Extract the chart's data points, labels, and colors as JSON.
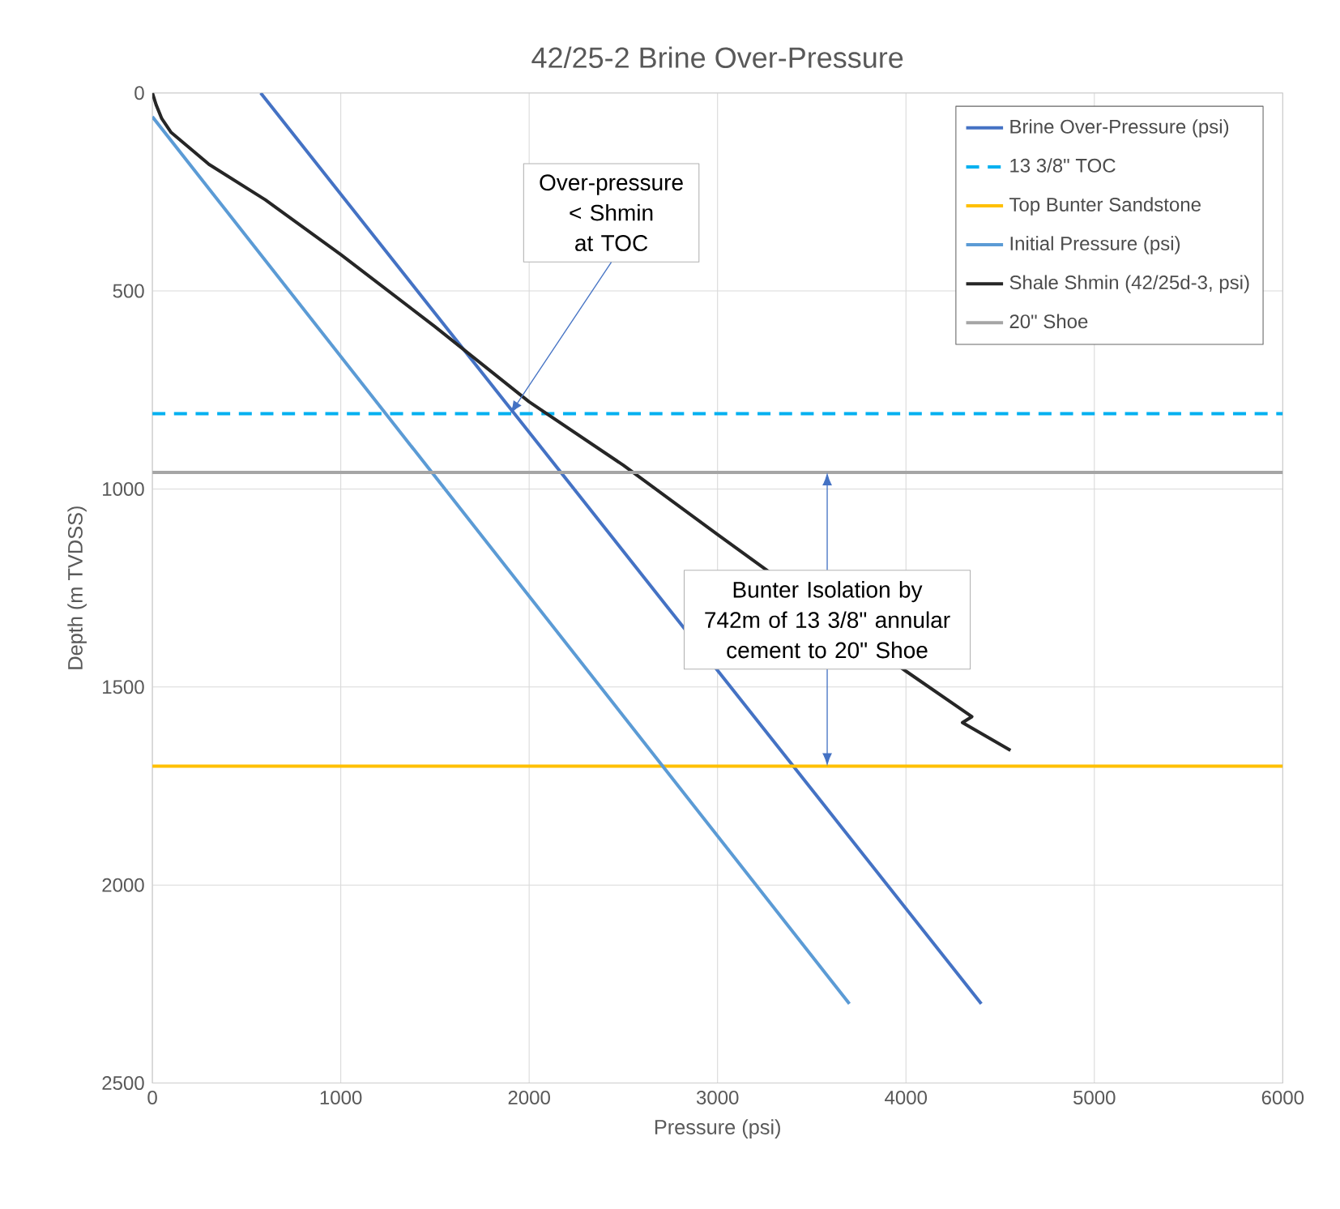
{
  "chart_data": {
    "type": "line",
    "title": "42/25-2 Brine Over-Pressure",
    "xlabel": "Pressure (psi)",
    "ylabel": "Depth (m TVDSS)",
    "xlim": [
      0,
      6000
    ],
    "xticks": [
      0,
      1000,
      2000,
      3000,
      4000,
      5000,
      6000
    ],
    "ylim": [
      2500,
      0
    ],
    "yticks": [
      0,
      500,
      1000,
      1500,
      2000,
      2500
    ],
    "grid": true,
    "legend": "top right",
    "marker": "none",
    "series": [
      {
        "name": "Brine Over-Pressure (psi)",
        "color": "#4472c4",
        "x": [
          575,
          4400
        ],
        "values": [
          0,
          2300
        ]
      },
      {
        "name": "13 3/8\" TOC",
        "color": "#00b0f0",
        "line_style": "dashed",
        "x": [
          0,
          6000
        ],
        "values": [
          810,
          810
        ]
      },
      {
        "name": "Top Bunter Sandstone",
        "color": "#ffc000",
        "x": [
          0,
          6000
        ],
        "values": [
          1700,
          1700
        ]
      },
      {
        "name": "Initial Pressure (psi)",
        "color": "#5b9bd5",
        "x": [
          0,
          3700
        ],
        "values": [
          60,
          2300
        ]
      },
      {
        "name": "Shale Shmin (42/25d-3, psi)",
        "color": "#262626",
        "x": [
          0,
          20,
          50,
          100,
          300,
          600,
          1000,
          1500,
          2000,
          2500,
          3000,
          3500,
          4000,
          4350,
          4300,
          4555
        ],
        "values": [
          0,
          30,
          65,
          100,
          180,
          270,
          408,
          590,
          780,
          940,
          1115,
          null,
          1460,
          1575,
          1590,
          1660
        ]
      },
      {
        "name": "20\" Shoe",
        "color": "#a5a5a5",
        "x": [
          0,
          6000
        ],
        "values": [
          958,
          958
        ]
      }
    ],
    "annotations": [
      {
        "text": "Over-pressure < Shmin at TOC",
        "x": 1900,
        "y": 810
      },
      "Bunter Isolation by 742m of 13 3/8\" annular cement to 20\" Shoe"
    ]
  }
}
